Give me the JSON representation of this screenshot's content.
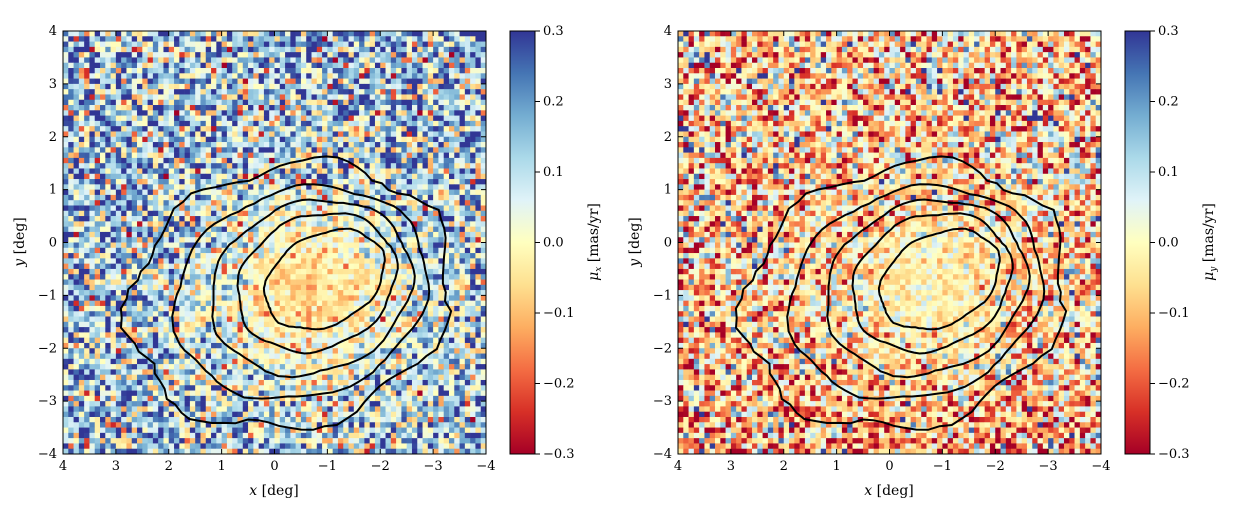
{
  "chart_data": [
    {
      "type": "heatmap",
      "title": "",
      "xlabel": "x [deg]",
      "ylabel": "y [deg]",
      "xlim": [
        4,
        -4
      ],
      "ylim": [
        -4,
        4
      ],
      "x_ticks": [
        "4",
        "3",
        "2",
        "1",
        "0",
        "−1",
        "−2",
        "−3",
        "−4"
      ],
      "y_ticks": [
        "4",
        "3",
        "2",
        "1",
        "0",
        "−1",
        "−2",
        "−3",
        "−4"
      ],
      "colorbar": {
        "label": "μx [mas/yr]",
        "range": [
          -0.3,
          0.3
        ],
        "ticks": [
          "0.3",
          "0.2",
          "0.1",
          "0.0",
          "−0.1",
          "−0.2",
          "−0.3"
        ],
        "colormap": "RdYlBu"
      },
      "field": {
        "grid": 80,
        "edge_level": 0.13,
        "core_level": -0.07,
        "contrast": 1.0
      },
      "contours": [
        {
          "name": "contour-level-1",
          "center": [
            -0.3,
            -1.0
          ],
          "rx": 3.1,
          "ry": 2.45,
          "rot": -0.3
        },
        {
          "name": "contour-level-2",
          "center": [
            -0.5,
            -0.95
          ],
          "rx": 2.45,
          "ry": 1.95,
          "rot": -0.35
        },
        {
          "name": "contour-level-3",
          "center": [
            -0.7,
            -0.85
          ],
          "rx": 1.95,
          "ry": 1.6,
          "rot": -0.4
        },
        {
          "name": "contour-level-4",
          "center": [
            -0.8,
            -0.75
          ],
          "rx": 1.55,
          "ry": 1.25,
          "rot": -0.45
        },
        {
          "name": "contour-level-5",
          "center": [
            -0.95,
            -0.7
          ],
          "rx": 1.2,
          "ry": 0.85,
          "rot": -0.5
        }
      ]
    },
    {
      "type": "heatmap",
      "title": "",
      "xlabel": "x [deg]",
      "ylabel": "y [deg]",
      "xlim": [
        4,
        -4
      ],
      "ylim": [
        -4,
        4
      ],
      "x_ticks": [
        "4",
        "3",
        "2",
        "1",
        "0",
        "−1",
        "−2",
        "−3",
        "−4"
      ],
      "y_ticks": [
        "4",
        "3",
        "2",
        "1",
        "0",
        "−1",
        "−2",
        "−3",
        "−4"
      ],
      "colorbar": {
        "label": "μy [mas/yr]",
        "range": [
          -0.3,
          0.3
        ],
        "ticks": [
          "0.3",
          "0.2",
          "0.1",
          "0.0",
          "−0.1",
          "−0.2",
          "−0.3"
        ],
        "colormap": "RdYlBu"
      },
      "field": {
        "grid": 80,
        "edge_level": -0.06,
        "core_level": -0.02,
        "contrast": 1.0
      },
      "contours": [
        {
          "name": "contour-level-1",
          "center": [
            -0.3,
            -1.0
          ],
          "rx": 3.1,
          "ry": 2.45,
          "rot": -0.3
        },
        {
          "name": "contour-level-2",
          "center": [
            -0.5,
            -0.95
          ],
          "rx": 2.45,
          "ry": 1.95,
          "rot": -0.35
        },
        {
          "name": "contour-level-3",
          "center": [
            -0.7,
            -0.85
          ],
          "rx": 1.95,
          "ry": 1.6,
          "rot": -0.4
        },
        {
          "name": "contour-level-4",
          "center": [
            -0.8,
            -0.75
          ],
          "rx": 1.55,
          "ry": 1.25,
          "rot": -0.45
        },
        {
          "name": "contour-level-5",
          "center": [
            -0.95,
            -0.7
          ],
          "rx": 1.2,
          "ry": 0.85,
          "rot": -0.5
        }
      ]
    }
  ]
}
